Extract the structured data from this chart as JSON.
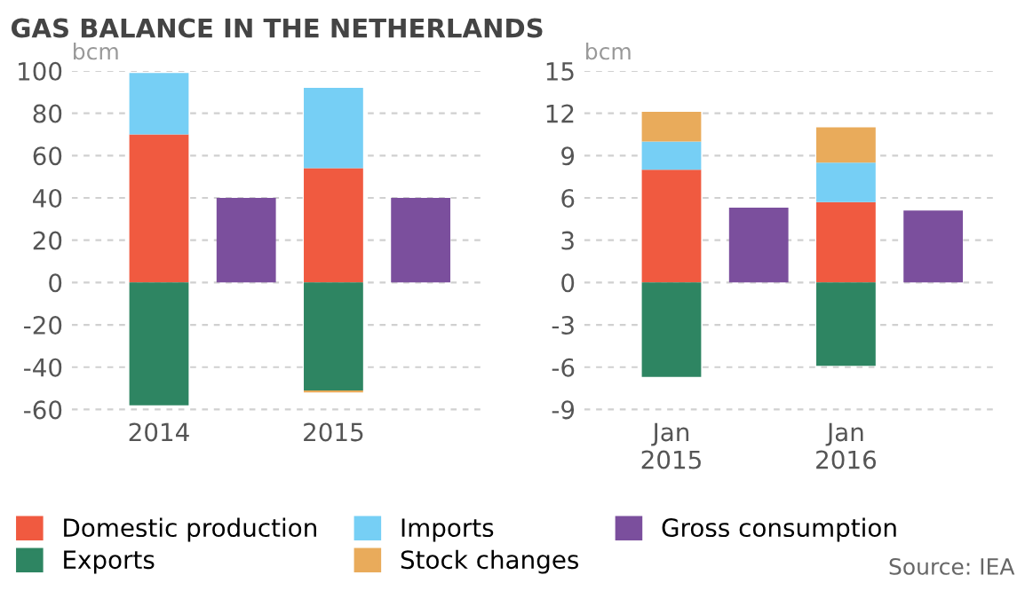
{
  "chart_data": [
    {
      "type": "bar",
      "title": "GAS BALANCE IN THE NETHERLANDS",
      "ylabel": "bcm",
      "stacked": true,
      "categories": [
        "2014",
        null,
        "2015",
        null
      ],
      "ylim": [
        -62,
        100
      ],
      "yticks": [
        -60,
        -40,
        -20,
        0,
        20,
        40,
        60,
        80,
        100
      ],
      "grid": "y",
      "legend": "bottom",
      "series": [
        {
          "name": "Domestic production",
          "color": "#f05a40",
          "values": [
            70,
            null,
            54,
            null
          ]
        },
        {
          "name": "Exports",
          "color": "#2e8562",
          "values": [
            -58,
            null,
            -51,
            null
          ]
        },
        {
          "name": "Imports",
          "color": "#76cff5",
          "values": [
            29,
            null,
            38,
            null
          ]
        },
        {
          "name": "Stock changes",
          "color": "#e9ab5b",
          "values": [
            null,
            null,
            -1,
            null
          ]
        },
        {
          "name": "Gross consumption",
          "color": "#7b4f9d",
          "values": [
            null,
            40,
            null,
            40
          ]
        }
      ]
    },
    {
      "type": "bar",
      "ylabel": "bcm",
      "stacked": true,
      "categories": [
        "Jan\n2015",
        null,
        "Jan\n2016",
        null
      ],
      "ylim": [
        -9.3,
        15
      ],
      "yticks": [
        -9,
        -6,
        -3,
        0,
        3,
        6,
        9,
        12,
        15
      ],
      "grid": "y",
      "annotations": [
        "Source: IEA"
      ],
      "series": [
        {
          "color": "#f05a40",
          "values": [
            8.0,
            null,
            5.7,
            null
          ]
        },
        {
          "color": "#2e8562",
          "values": [
            -6.7,
            null,
            -5.9,
            null
          ]
        },
        {
          "color": "#76cff5",
          "values": [
            2.0,
            null,
            2.8,
            null
          ]
        },
        {
          "color": "#e9ab5b",
          "values": [
            2.1,
            null,
            2.5,
            null
          ]
        },
        {
          "color": "#7b4f9d",
          "values": [
            null,
            5.3,
            null,
            5.1
          ]
        }
      ]
    }
  ]
}
